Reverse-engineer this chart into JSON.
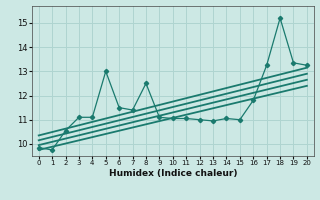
{
  "title": "",
  "xlabel": "Humidex (Indice chaleur)",
  "ylabel": "",
  "bg_color": "#cce8e4",
  "grid_color": "#afd4d0",
  "line_color": "#1a7a6e",
  "xlim": [
    -0.5,
    20.5
  ],
  "ylim": [
    9.5,
    15.7
  ],
  "yticks": [
    10,
    11,
    12,
    13,
    14,
    15
  ],
  "xticks": [
    0,
    1,
    2,
    3,
    4,
    5,
    6,
    7,
    8,
    9,
    10,
    11,
    12,
    13,
    14,
    15,
    16,
    17,
    18,
    19,
    20
  ],
  "series": [
    {
      "x": [
        0,
        1,
        2,
        3,
        4,
        5,
        6,
        7,
        8,
        9,
        10,
        11,
        12,
        13,
        14,
        15,
        16,
        17,
        18,
        19,
        20
      ],
      "y": [
        9.85,
        9.75,
        10.55,
        11.1,
        11.1,
        13.0,
        11.5,
        11.4,
        12.5,
        11.1,
        11.05,
        11.05,
        11.0,
        10.95,
        11.05,
        11.0,
        11.8,
        13.25,
        15.2,
        13.35,
        13.25
      ],
      "marker": "D",
      "markersize": 2.2,
      "linewidth": 0.9
    },
    {
      "x": [
        0,
        20
      ],
      "y": [
        10.35,
        13.15
      ],
      "marker": null,
      "markersize": 0,
      "linewidth": 1.3
    },
    {
      "x": [
        0,
        20
      ],
      "y": [
        10.15,
        12.9
      ],
      "marker": null,
      "markersize": 0,
      "linewidth": 1.3
    },
    {
      "x": [
        0,
        20
      ],
      "y": [
        9.95,
        12.65
      ],
      "marker": null,
      "markersize": 0,
      "linewidth": 1.3
    },
    {
      "x": [
        0,
        20
      ],
      "y": [
        9.75,
        12.4
      ],
      "marker": null,
      "markersize": 0,
      "linewidth": 1.3
    }
  ]
}
